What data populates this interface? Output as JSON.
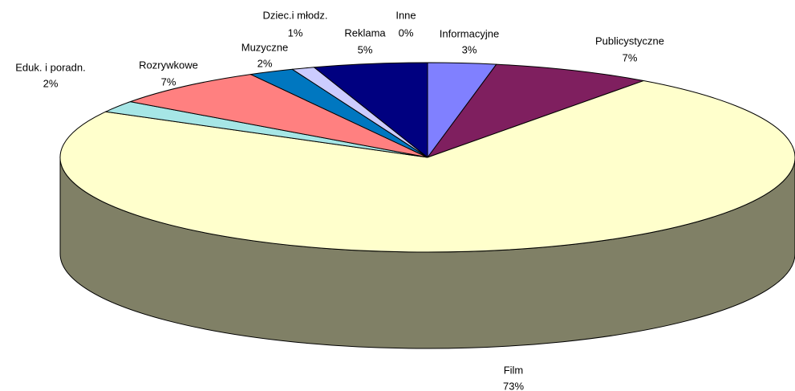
{
  "chart_data": {
    "type": "pie3d",
    "categories": [
      "Informacyjne",
      "Publicystyczne",
      "Film",
      "Eduk. i poradn.",
      "Rozrywkowe",
      "Muzyczne",
      "Dziec.i młodz.",
      "Reklama",
      "Inne"
    ],
    "values": [
      3,
      7,
      73,
      2,
      7,
      2,
      1,
      5,
      0
    ],
    "value_labels": [
      "3%",
      "7%",
      "73%",
      "2%",
      "7%",
      "2%",
      "1%",
      "5%",
      "0%"
    ],
    "colors": [
      "#8080ff",
      "#7f1f5f",
      "#ffffcc",
      "#a6e6e6",
      "#ff8080",
      "#0077c0",
      "#ccccff",
      "#000080",
      "#ff00ff"
    ]
  }
}
